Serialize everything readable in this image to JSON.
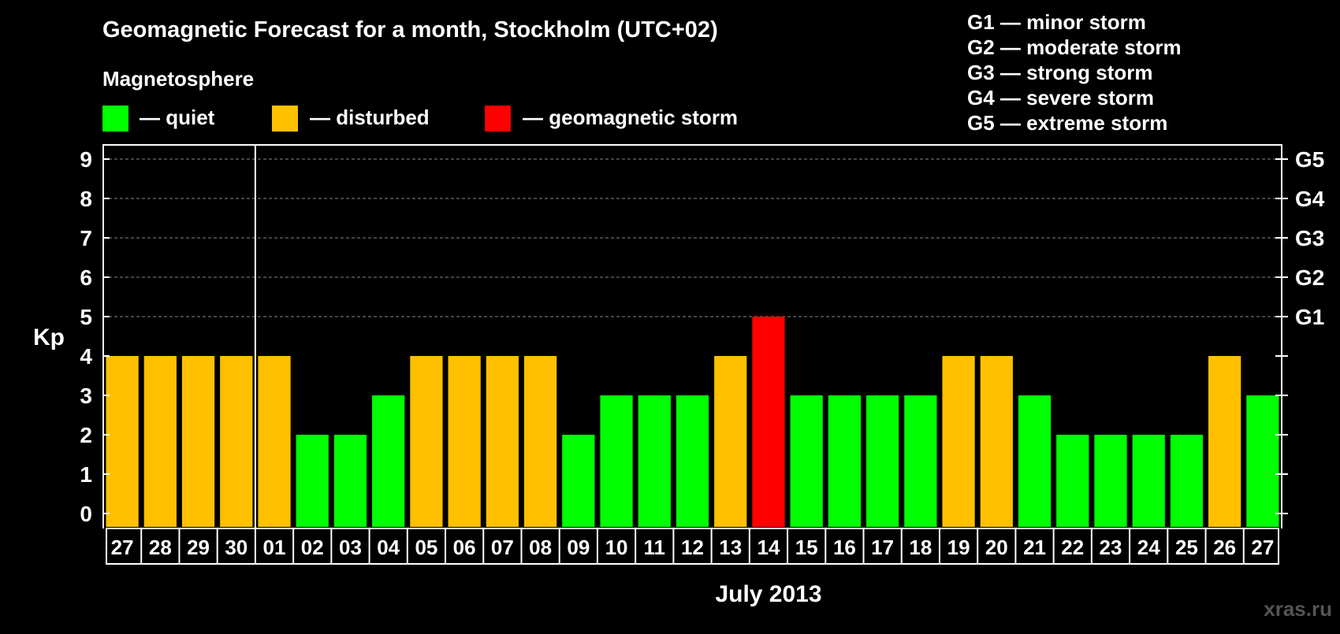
{
  "chart_data": {
    "type": "bar",
    "title": "Geomagnetic Forecast for a month, Stockholm (UTC+02)",
    "xlabel": "July 2013",
    "ylabel": "Kp",
    "ylim": [
      0,
      9.4
    ],
    "yticks": [
      "0",
      "1",
      "2",
      "3",
      "4",
      "5",
      "6",
      "7",
      "8",
      "9"
    ],
    "right_axis": [
      {
        "kp": 5,
        "label": "G1"
      },
      {
        "kp": 6,
        "label": "G2"
      },
      {
        "kp": 7,
        "label": "G3"
      },
      {
        "kp": 8,
        "label": "G4"
      },
      {
        "kp": 9,
        "label": "G5"
      }
    ],
    "grid": "dashed horizontal at Kp 5–9",
    "categories": [
      "27",
      "28",
      "29",
      "30",
      "01",
      "02",
      "03",
      "04",
      "05",
      "06",
      "07",
      "08",
      "09",
      "10",
      "11",
      "12",
      "13",
      "14",
      "15",
      "16",
      "17",
      "18",
      "19",
      "20",
      "21",
      "22",
      "23",
      "24",
      "25",
      "26",
      "27"
    ],
    "values": [
      4,
      4,
      4,
      4,
      4,
      2,
      2,
      3,
      4,
      4,
      4,
      4,
      2,
      3,
      3,
      3,
      4,
      5,
      3,
      3,
      3,
      3,
      4,
      4,
      3,
      2,
      2,
      2,
      2,
      4,
      3
    ],
    "month_divider_after_index": 3,
    "legend": {
      "heading": "Magnetosphere",
      "items": [
        {
          "label": "— quiet",
          "color": "#00ff00",
          "range": "Kp < 4"
        },
        {
          "label": "— disturbed",
          "color": "#ffc000",
          "range": "Kp = 4"
        },
        {
          "label": "— geomagnetic storm",
          "color": "#ff0000",
          "range": "Kp ≥ 5"
        }
      ]
    },
    "storm_scale": [
      "G1 — minor storm",
      "G2 — moderate storm",
      "G3 — strong storm",
      "G4 — severe storm",
      "G5 — extreme storm"
    ]
  },
  "watermark": "xras.ru",
  "colors": {
    "background": "#000000",
    "foreground": "#ffffff",
    "quiet": "#00ff00",
    "disturbed": "#ffc000",
    "storm": "#ff0000",
    "grid": "#888888",
    "watermark": "#555555"
  }
}
